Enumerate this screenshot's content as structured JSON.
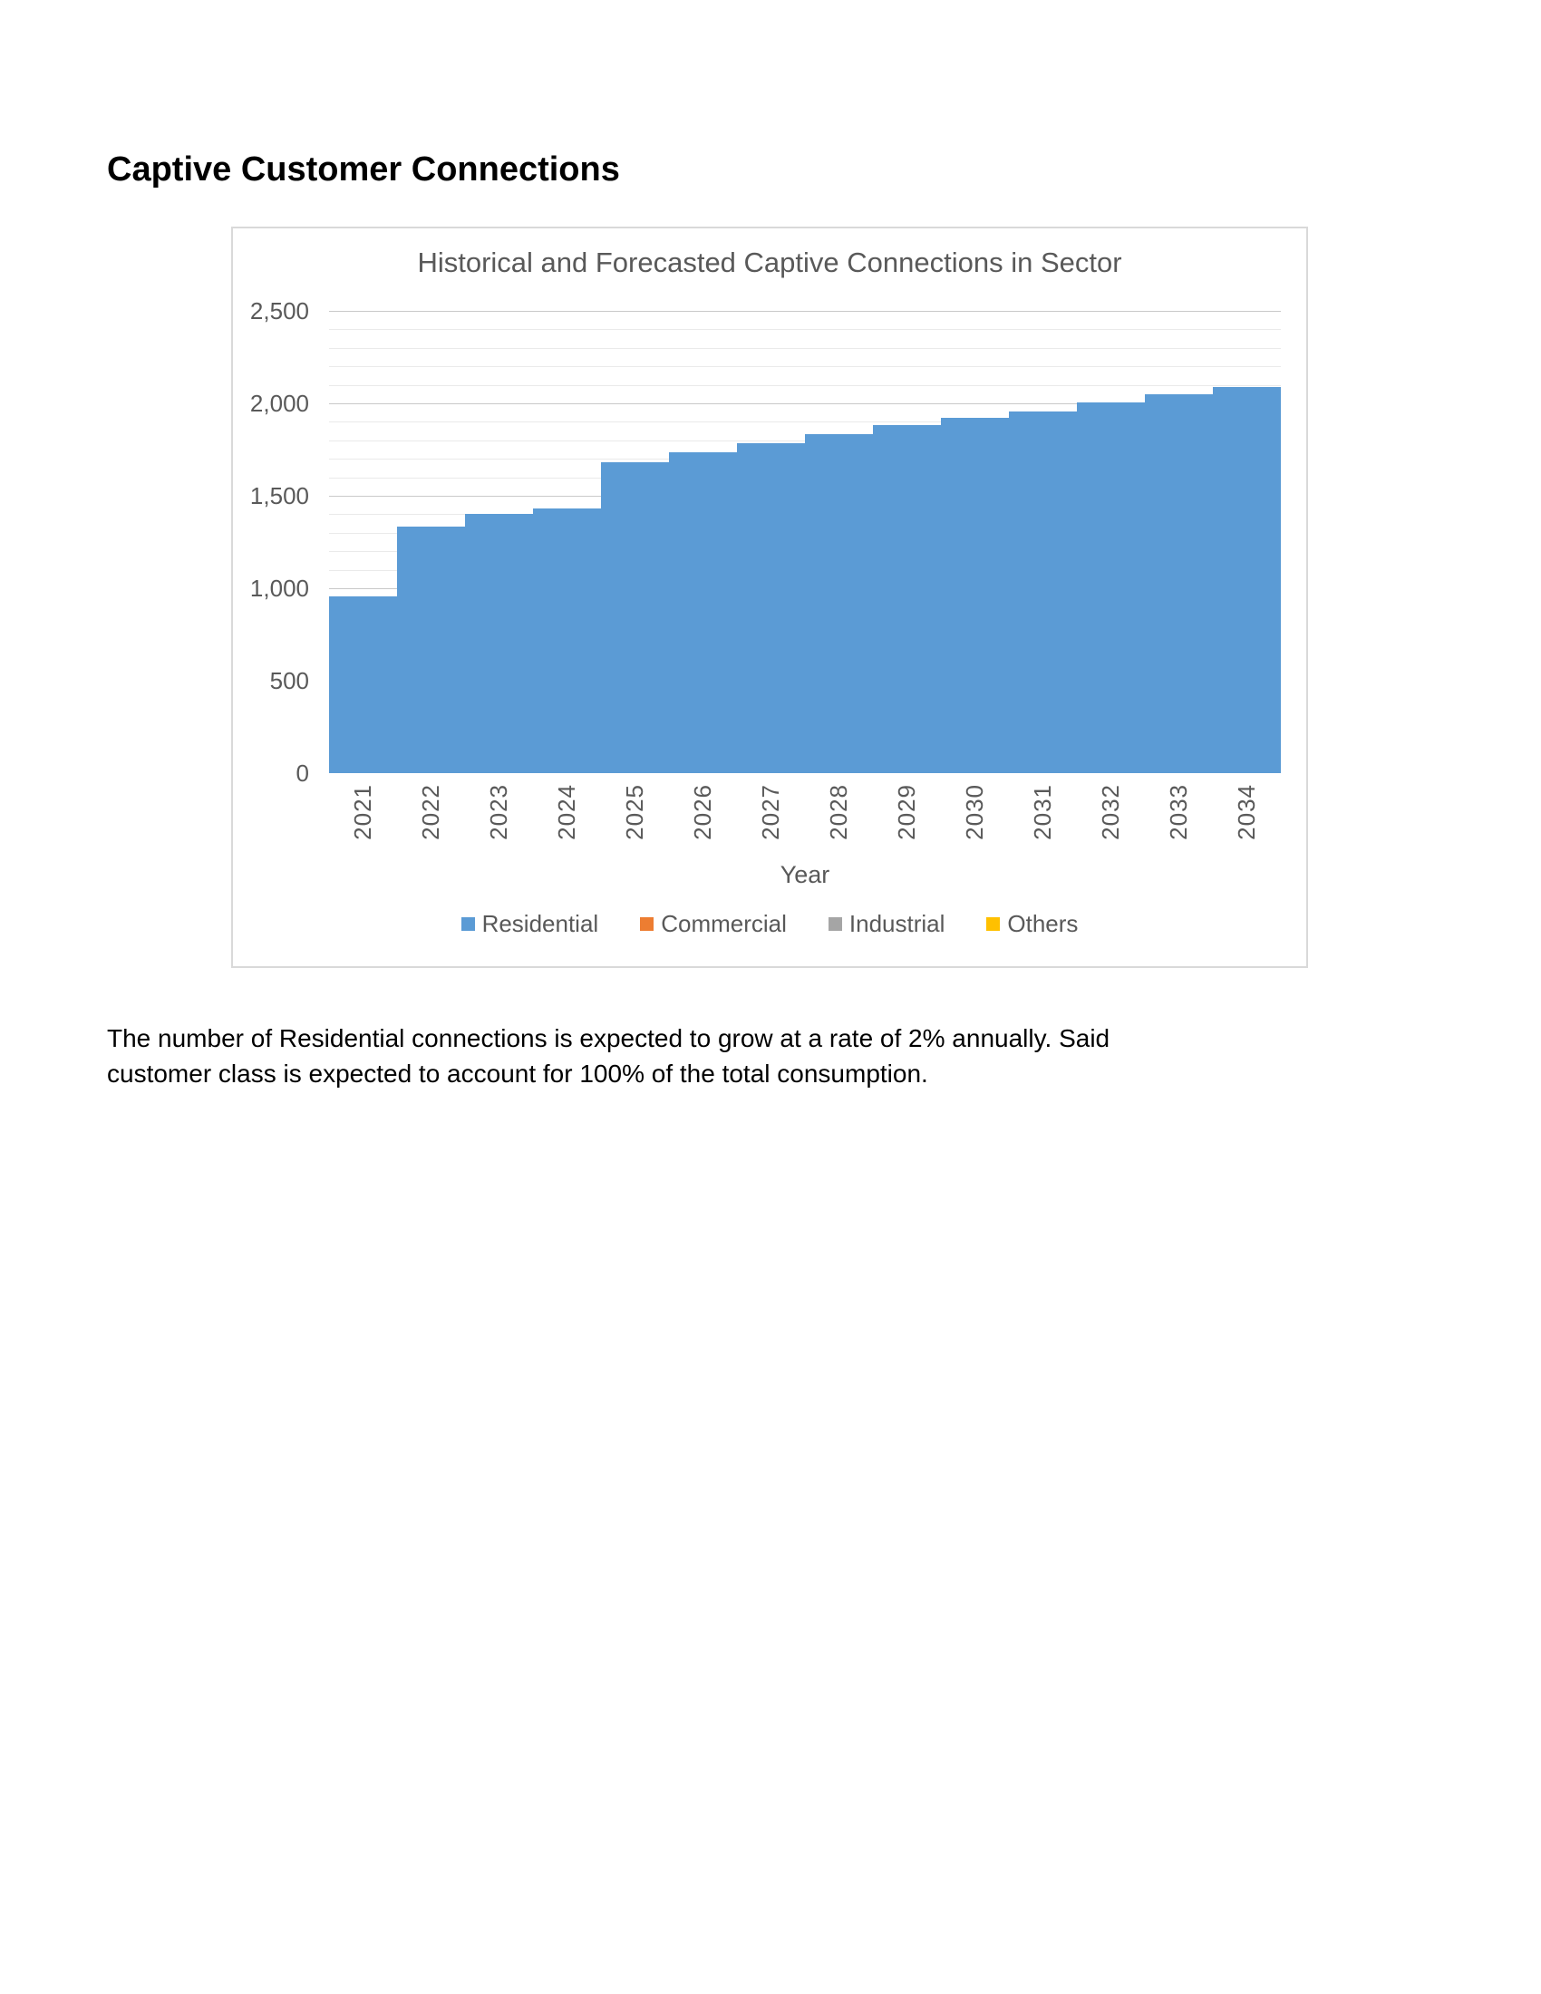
{
  "page": {
    "heading": "Captive Customer Connections",
    "paragraph_lines": [
      "The number of Residential connections is expected to grow at a rate of 2% annually. Said",
      "customer class is expected to account for 100% of the total consumption."
    ]
  },
  "chart_data": {
    "type": "bar",
    "stacked": true,
    "gap_width_percent": 0,
    "title": "Historical and Forecasted Captive Connections in Sector",
    "xlabel": "Year",
    "ylabel": "",
    "categories": [
      "2021",
      "2022",
      "2023",
      "2024",
      "2025",
      "2026",
      "2027",
      "2028",
      "2029",
      "2030",
      "2031",
      "2032",
      "2033",
      "2034"
    ],
    "series": [
      {
        "name": "Residential",
        "color": "#5B9BD5",
        "values": [
          955,
          1335,
          1400,
          1430,
          1680,
          1735,
          1785,
          1835,
          1880,
          1920,
          1955,
          2005,
          2050,
          2090
        ]
      }
    ],
    "legend": [
      {
        "label": "Residential",
        "color": "#5B9BD5"
      },
      {
        "label": "Commercial",
        "color": "#ED7D31"
      },
      {
        "label": "Industrial",
        "color": "#A5A5A5"
      },
      {
        "label": "Others",
        "color": "#FFC000"
      }
    ],
    "legend_position": "bottom",
    "grid": {
      "major": true,
      "minor": true,
      "major_color": "#C9C9C9",
      "minor_color": "#EAEAEA"
    },
    "y_axis": {
      "min": 0,
      "max": 2500,
      "major_step": 500,
      "minor_step": 100,
      "tick_labels": [
        "0",
        "500",
        "1,000",
        "1,500",
        "2,000",
        "2,500"
      ]
    },
    "text_color": "#595959",
    "frame_border_color": "#D9D9D9"
  }
}
